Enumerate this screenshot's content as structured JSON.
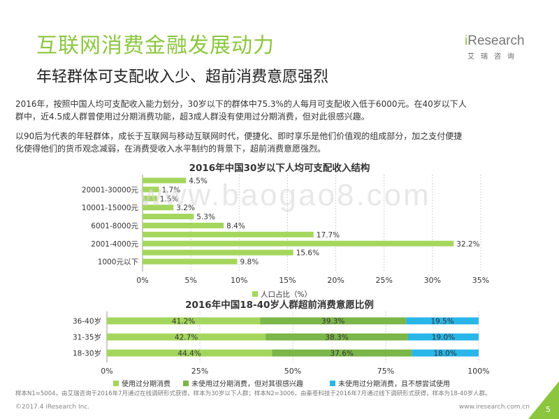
{
  "header": {
    "title": "互联网消费金融发展动力",
    "subtitle": "年轻群体可支配收入少、超前消费意愿强烈"
  },
  "logo": {
    "brand_i": "i",
    "brand_rest": "Research",
    "brand_cn": "艾瑞咨询"
  },
  "paragraphs": {
    "p1_line1": "2016年，按照中国人均可支配收入能力划分，30岁以下的群体中75.3%的人每月可支配收入低于6000元。在40岁以下人",
    "p1_line2": "群中，近4.5成人群曾使用过分期消费功能，超3成人群没有使用过分期消费，但对此很感兴趣。",
    "p2_line1": "以90后为代表的年轻群体，成长于互联网与移动互联网时代，便捷化、即时享乐是他们价值观的组成部分，加之支付便捷",
    "p2_line2": "化使得他们的货币观念减弱，在消费受收入水平制约的背景下，超前消费意愿强烈。"
  },
  "watermark": "www.baogao8.com",
  "chart_data": [
    {
      "type": "bar",
      "orientation": "horizontal",
      "title": "2016年中国30岁以下人均可支配收入结构",
      "categories_top_to_bottom": [
        "",
        "20001-30000元",
        "",
        "10001-15000元",
        "",
        "6001-8000元",
        "",
        "2001-4000元",
        "",
        "1000元以下"
      ],
      "values": [
        4.5,
        1.7,
        1.5,
        3.2,
        5.3,
        8.4,
        17.7,
        32.2,
        15.6,
        9.8
      ],
      "value_labels": [
        "4.5%",
        "1.7%",
        "1.5%",
        "3.2%",
        "5.3%",
        "8.4%",
        "17.7%",
        "32.2%",
        "15.6%",
        "9.8%"
      ],
      "x_ticks": [
        "0%",
        "5%",
        "10%",
        "15%",
        "20%",
        "25%",
        "30%",
        "35%"
      ],
      "xlim": [
        0,
        35
      ],
      "series": [
        {
          "name": "人口占比（%）"
        }
      ],
      "color": "#a4d65e",
      "legend_position": "bottom"
    },
    {
      "type": "bar",
      "orientation": "horizontal",
      "stacked": true,
      "title": "2016年中国18-40岁人群超前消费意愿比例",
      "categories": [
        "36-40岁",
        "31-35岁",
        "18-30岁"
      ],
      "series": [
        {
          "name": "使用过分期消费",
          "values": [
            41.2,
            42.7,
            44.4
          ],
          "labels": [
            "41.2%",
            "42.7%",
            "44.4%"
          ],
          "color": "#a4d65e"
        },
        {
          "name": "未使用过分期消费，但对其很感兴趣",
          "values": [
            39.3,
            38.3,
            37.6
          ],
          "labels": [
            "39.3%",
            "38.3%",
            "37.6%"
          ],
          "color": "#7ab648"
        },
        {
          "name": "未使用过分期消费，且不想尝试使用",
          "values": [
            19.5,
            19.0,
            18.0
          ],
          "labels": [
            "19.5%",
            "19.0%",
            "18.0%"
          ],
          "color": "#29b6e8"
        }
      ],
      "x_ticks": [
        "0%",
        "25%",
        "50%",
        "75%",
        "100%"
      ],
      "xlim": [
        0,
        100
      ],
      "legend_position": "bottom"
    }
  ],
  "footer": {
    "note": "样本N1=5004，由艾瑞咨询于2016年7月通过在线调研形式获得，样本为30岁以下人群；样本N2=3006，由秦苍科技于2016年7月通过线下调研形式获得，样本为18-40岁人群。",
    "copyright": "©2017.4 iResearch Inc.",
    "url": "www.iresearch.com.cn",
    "page_number": "5"
  },
  "colors": {
    "accent": "#8cc63f",
    "corner": "#8cc63f"
  }
}
